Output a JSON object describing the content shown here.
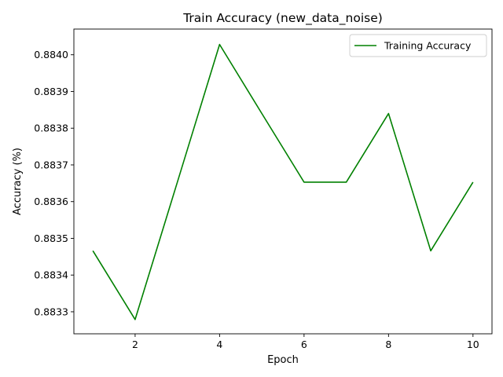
{
  "chart_data": {
    "type": "line",
    "title": "Train Accuracy (new_data_noise)",
    "xlabel": "Epoch",
    "ylabel": "Accuracy (%)",
    "x": [
      1,
      2,
      3,
      4,
      5,
      6,
      7,
      8,
      9,
      10
    ],
    "series": [
      {
        "name": "Training Accuracy",
        "color": "#008000",
        "values": [
          0.883466,
          0.883279,
          0.883653,
          0.884028,
          0.88384,
          0.883653,
          0.883653,
          0.88384,
          0.883466,
          0.883653
        ]
      }
    ],
    "xlim": [
      0.55,
      10.45
    ],
    "ylim": [
      0.88324,
      0.88407
    ],
    "xticks": [
      2,
      4,
      6,
      8,
      10
    ],
    "xtick_labels": [
      "2",
      "4",
      "6",
      "8",
      "10"
    ],
    "yticks": [
      0.8833,
      0.8834,
      0.8835,
      0.8836,
      0.8837,
      0.8838,
      0.8839,
      0.884
    ],
    "ytick_labels": [
      "0.8833",
      "0.8834",
      "0.8835",
      "0.8836",
      "0.8837",
      "0.8838",
      "0.8839",
      "0.8840"
    ],
    "grid": false,
    "legend_position": "top-right"
  }
}
